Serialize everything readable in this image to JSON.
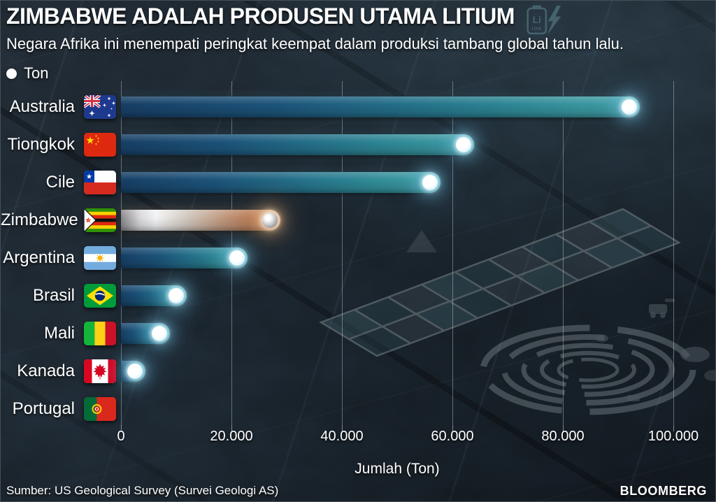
{
  "header": {
    "title": "ZIMBABWE ADALAH PRODUSEN UTAMA LITIUM",
    "subtitle": "Negara Afrika ini menempati peringkat keempat dalam produksi tambang global tahun lalu.",
    "legend_label": "Ton",
    "battery": {
      "line1": "Li",
      "line2": "ION"
    }
  },
  "chart_data": {
    "type": "bar",
    "orientation": "horizontal",
    "title": "ZIMBABWE ADALAH PRODUSEN UTAMA LITIUM",
    "unit": "Ton",
    "xlabel": "Jumlah (Ton)",
    "xlim": [
      0,
      100000
    ],
    "xtick_values": [
      0,
      20000,
      40000,
      60000,
      80000,
      100000
    ],
    "xtick_labels": [
      "0",
      "20.000",
      "40.000",
      "60.000",
      "80.000",
      "100.000"
    ],
    "grid": true,
    "legend_position": "top-left",
    "categories": [
      "Australia",
      "Tiongkok",
      "Cile",
      "Zimbabwe",
      "Argentina",
      "Brasil",
      "Mali",
      "Kanada",
      "Portugal"
    ],
    "values": [
      92000,
      62000,
      56000,
      27000,
      21000,
      10000,
      7000,
      2500,
      0
    ],
    "flags": [
      "australia",
      "china",
      "chile",
      "zimbabwe",
      "argentina",
      "brazil",
      "mali",
      "canada",
      "portugal"
    ],
    "highlight": "Zimbabwe"
  },
  "colors": {
    "background": "#161e25",
    "bar_gradient_start": "#173f66",
    "bar_gradient_end": "#43a0a6",
    "highlight_silver": "#f2f3f4",
    "highlight_copper": "#b87d5a",
    "dot": "#ffffff",
    "dot_glow": "#aee9ff",
    "gridline": "rgba(213,224,230,0.4)",
    "text": "#ffffff",
    "battery_icon": "#45626d",
    "watermark": "#9aa6ad"
  },
  "footer": {
    "source": "Sumber: US Geological Survey (Survei Geologi AS)",
    "brand": "BLOOMBERG"
  }
}
